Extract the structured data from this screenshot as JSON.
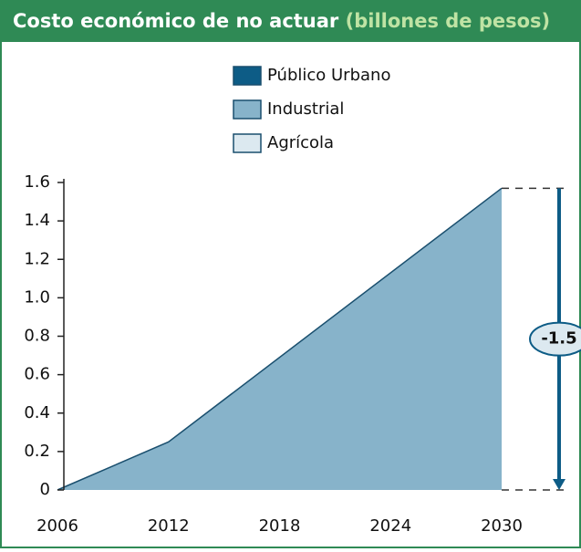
{
  "chart_data": {
    "type": "stacked_area",
    "title": "Costo económico de no actuar",
    "subtitle": "(billones de pesos)",
    "x": [
      2006,
      2012,
      2030
    ],
    "series": [
      {
        "name": "Público Urbano",
        "color": "#0d5c86",
        "values": [
          0,
          0,
          0
        ]
      },
      {
        "name": "Industrial",
        "color": "#87b3ca",
        "values": [
          0,
          0.25,
          1.57
        ]
      },
      {
        "name": "Agrícola",
        "color": "#dce9f0",
        "values": [
          0,
          0,
          0
        ]
      }
    ],
    "xlim": [
      2006,
      2030
    ],
    "xticks": [
      2006,
      2012,
      2018,
      2024,
      2030
    ],
    "ylim": [
      0,
      1.6
    ],
    "yticks": [
      0,
      0.2,
      0.4,
      0.6,
      0.8,
      {
        "value": 1,
        "label": "1.0"
      },
      1.2,
      1.4,
      1.6
    ],
    "annotation": "-1.5"
  }
}
